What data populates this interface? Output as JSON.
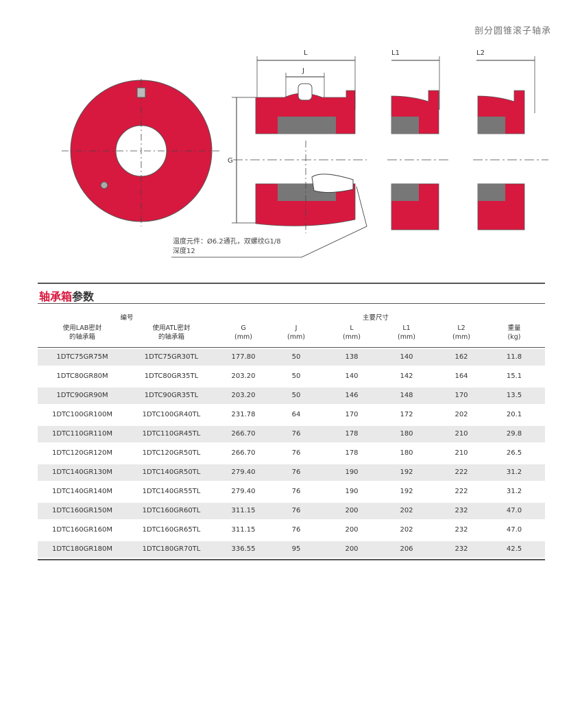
{
  "header": {
    "title": "剖分圆锥滚子轴承"
  },
  "drawing": {
    "dims": {
      "L": "L",
      "J": "J",
      "L1": "L1",
      "L2": "L2",
      "G": "G"
    },
    "note_line1": "温度元件：Ø6.2通孔，双螺纹G1/8",
    "note_line2": "深度12",
    "accent_color": "#d7193f"
  },
  "section": {
    "title_red": "轴承箱",
    "title_dark": "参数"
  },
  "table": {
    "group_code": "编号",
    "group_dims": "主要尺寸",
    "columns": [
      {
        "l1": "使用LAB密封",
        "l2": "的轴承箱"
      },
      {
        "l1": "使用ATL密封",
        "l2": "的轴承箱"
      },
      {
        "l1": "G",
        "l2": "(mm)"
      },
      {
        "l1": "J",
        "l2": "(mm)"
      },
      {
        "l1": "L",
        "l2": "(mm)"
      },
      {
        "l1": "L1",
        "l2": "(mm)"
      },
      {
        "l1": "L2",
        "l2": "(mm)"
      },
      {
        "l1": "重量",
        "l2": "(kg)"
      }
    ],
    "rows": [
      [
        "1DTC75GR75M",
        "1DTC75GR30TL",
        "177.80",
        "50",
        "138",
        "140",
        "162",
        "11.8"
      ],
      [
        "1DTC80GR80M",
        "1DTC80GR35TL",
        "203.20",
        "50",
        "140",
        "142",
        "164",
        "15.1"
      ],
      [
        "1DTC90GR90M",
        "1DTC90GR35TL",
        "203.20",
        "50",
        "146",
        "148",
        "170",
        "13.5"
      ],
      [
        "1DTC100GR100M",
        "1DTC100GR40TL",
        "231.78",
        "64",
        "170",
        "172",
        "202",
        "20.1"
      ],
      [
        "1DTC110GR110M",
        "1DTC110GR45TL",
        "266.70",
        "76",
        "178",
        "180",
        "210",
        "29.8"
      ],
      [
        "1DTC120GR120M",
        "1DTC120GR50TL",
        "266.70",
        "76",
        "178",
        "180",
        "210",
        "26.5"
      ],
      [
        "1DTC140GR130M",
        "1DTC140GR50TL",
        "279.40",
        "76",
        "190",
        "192",
        "222",
        "31.2"
      ],
      [
        "1DTC140GR140M",
        "1DTC140GR55TL",
        "279.40",
        "76",
        "190",
        "192",
        "222",
        "31.2"
      ],
      [
        "1DTC160GR150M",
        "1DTC160GR60TL",
        "311.15",
        "76",
        "200",
        "202",
        "232",
        "47.0"
      ],
      [
        "1DTC160GR160M",
        "1DTC160GR65TL",
        "311.15",
        "76",
        "200",
        "202",
        "232",
        "47.0"
      ],
      [
        "1DTC180GR180M",
        "1DTC180GR70TL",
        "336.55",
        "95",
        "200",
        "206",
        "232",
        "42.5"
      ]
    ]
  }
}
